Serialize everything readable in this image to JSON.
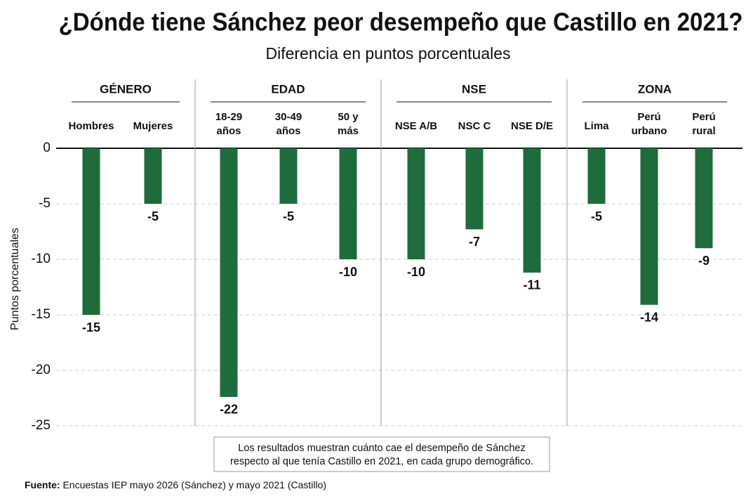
{
  "chart_data": {
    "type": "bar",
    "title": "¿Dónde tiene Sánchez peor desempeño que Castillo en 2021?",
    "subtitle": "Diferencia en puntos porcentuales",
    "y_label": "Puntos porcentuales",
    "color": "#1e6b3c",
    "ylim": [
      0,
      -25
    ],
    "yticks": [
      0,
      -5,
      -10,
      -15,
      -20,
      -25
    ],
    "grid": true,
    "groups": [
      {
        "name": "GÉNERO",
        "categories": [
          "Hombres",
          "Mujeres"
        ],
        "values": [
          -15,
          -5
        ],
        "value_labels": [
          "-15",
          "-5"
        ]
      },
      {
        "name": "EDAD",
        "categories": [
          "18-29\naños",
          "30-49\naños",
          "50 y\nmás"
        ],
        "values": [
          -22.4,
          -5,
          -10
        ],
        "value_labels": [
          "-22",
          "-5",
          "-10"
        ]
      },
      {
        "name": "NSE",
        "categories": [
          "NSE A/B",
          "NSC C",
          "NSE D/E"
        ],
        "values": [
          -10,
          -7.3,
          -11.2
        ],
        "value_labels": [
          "-10",
          "-7",
          "-11"
        ]
      },
      {
        "name": "ZONA",
        "categories": [
          "Lima",
          "Perú\nurbano",
          "Perú\nrural"
        ],
        "values": [
          -5,
          -14.1,
          -9
        ],
        "value_labels": [
          "-5",
          "-14",
          "-9"
        ]
      }
    ],
    "note": [
      "Los resultados muestran cuánto cae el desempeño de Sánchez",
      "respecto al que tenía Castillo en 2021, en cada grupo demográfico."
    ],
    "source": {
      "label": "Fuente:",
      "text": "Encuestas IEP mayo 2026 (Sánchez) y mayo 2021 (Castillo)"
    }
  }
}
